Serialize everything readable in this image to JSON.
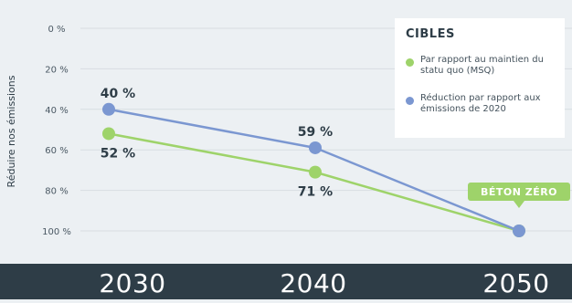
{
  "chart_data": {
    "type": "line",
    "ylabel": "Réduire nos émissions",
    "y_ticks": [
      "0 %",
      "20 %",
      "40 %",
      "60 %",
      "80 %",
      "100 %"
    ],
    "y_tick_values": [
      0,
      20,
      40,
      60,
      80,
      100
    ],
    "ylim": [
      0,
      100
    ],
    "y_inverted": true,
    "categories": [
      "2030",
      "2040",
      "2050"
    ],
    "series": [
      {
        "name": "Par rapport au maintien du statu quo (MSQ)",
        "color": "#9ed36a",
        "values": [
          52,
          71,
          100
        ],
        "labels": [
          "52 %",
          "71 %",
          ""
        ],
        "label_side": "below"
      },
      {
        "name": "Réduction par rapport aux émissions de 2020",
        "color": "#7b97d1",
        "values": [
          40,
          59,
          100
        ],
        "labels": [
          "40 %",
          "59 %",
          ""
        ],
        "label_side": "above"
      }
    ],
    "annotation": "BÉTON ZÉRO",
    "annotation_color": "#9ed36a",
    "legend": {
      "title": "CIBLES",
      "placement": "top-right"
    },
    "grid": true
  }
}
